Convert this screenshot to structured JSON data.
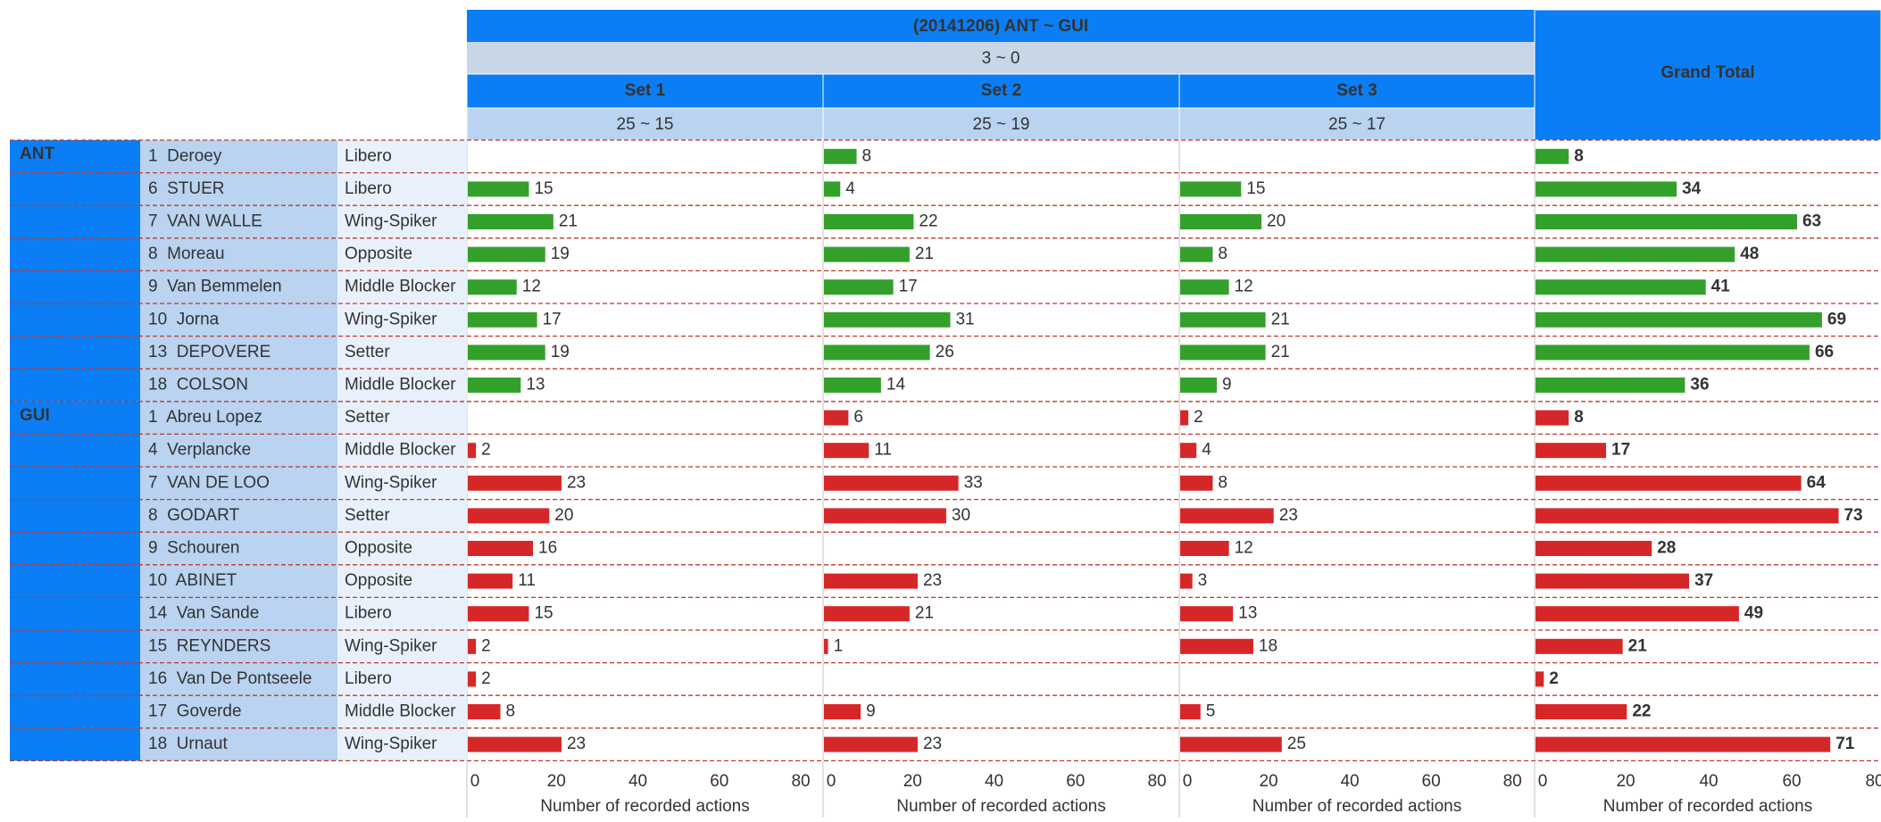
{
  "chart_data": {
    "type": "bar",
    "title": "(20141206) ANT ~ GUI",
    "subtitle": "3 ~ 0",
    "teams": [
      {
        "name": "ANT",
        "color": "#34a02c",
        "players": [
          "1  Deroey",
          "6  STUER",
          "7  VAN WALLE",
          "8  Moreau",
          "9  Van Bemmelen",
          "10  Jorna",
          "13  DEPOVERE",
          "18  COLSON"
        ],
        "positions": [
          "Libero",
          "Libero",
          "Wing-Spiker",
          "Opposite",
          "Middle Blocker",
          "Wing-Spiker",
          "Setter",
          "Middle Blocker"
        ]
      },
      {
        "name": "GUI",
        "color": "#d62728",
        "players": [
          "1  Abreu Lopez",
          "4  Verplancke",
          "7  VAN DE LOO",
          "8  GODART",
          "9  Schouren",
          "10  ABINET",
          "14  Van Sande",
          "15  REYNDERS",
          "16  Van De Pontseele",
          "17  Goverde",
          "18  Urnaut"
        ],
        "positions": [
          "Setter",
          "Middle Blocker",
          "Wing-Spiker",
          "Setter",
          "Opposite",
          "Opposite",
          "Libero",
          "Wing-Spiker",
          "Libero",
          "Middle Blocker",
          "Wing-Spiker"
        ]
      }
    ],
    "panels": [
      {
        "name": "Set 1",
        "score": "25 ~ 15",
        "xlabel": "Number of recorded actions",
        "xlim": [
          0,
          87
        ],
        "xticks": [
          0,
          20,
          40,
          60,
          80
        ],
        "values": [
          [
            null,
            15,
            21,
            19,
            12,
            17,
            19,
            13
          ],
          [
            null,
            2,
            23,
            20,
            16,
            11,
            15,
            2,
            2,
            8,
            23
          ]
        ]
      },
      {
        "name": "Set 2",
        "score": "25 ~ 19",
        "xlabel": "Number of recorded actions",
        "xlim": [
          0,
          87
        ],
        "xticks": [
          0,
          20,
          40,
          60,
          80
        ],
        "values": [
          [
            8,
            4,
            22,
            21,
            17,
            31,
            26,
            14
          ],
          [
            6,
            11,
            33,
            30,
            null,
            23,
            21,
            1,
            null,
            9,
            23
          ]
        ]
      },
      {
        "name": "Set 3",
        "score": "25 ~ 17",
        "xlabel": "Number of recorded actions",
        "xlim": [
          0,
          87
        ],
        "xticks": [
          0,
          20,
          40,
          60,
          80
        ],
        "values": [
          [
            null,
            15,
            20,
            8,
            12,
            21,
            21,
            9
          ],
          [
            2,
            4,
            8,
            23,
            12,
            3,
            13,
            18,
            null,
            5,
            25
          ]
        ]
      },
      {
        "name": "Grand Total",
        "xlabel": "Number of recorded actions",
        "xlim": [
          0,
          83
        ],
        "xticks": [
          0,
          20,
          40,
          60,
          80
        ],
        "bold_labels": true,
        "values": [
          [
            8,
            34,
            63,
            48,
            41,
            69,
            66,
            36
          ],
          [
            8,
            17,
            64,
            73,
            28,
            37,
            49,
            21,
            2,
            22,
            71
          ]
        ]
      }
    ]
  }
}
